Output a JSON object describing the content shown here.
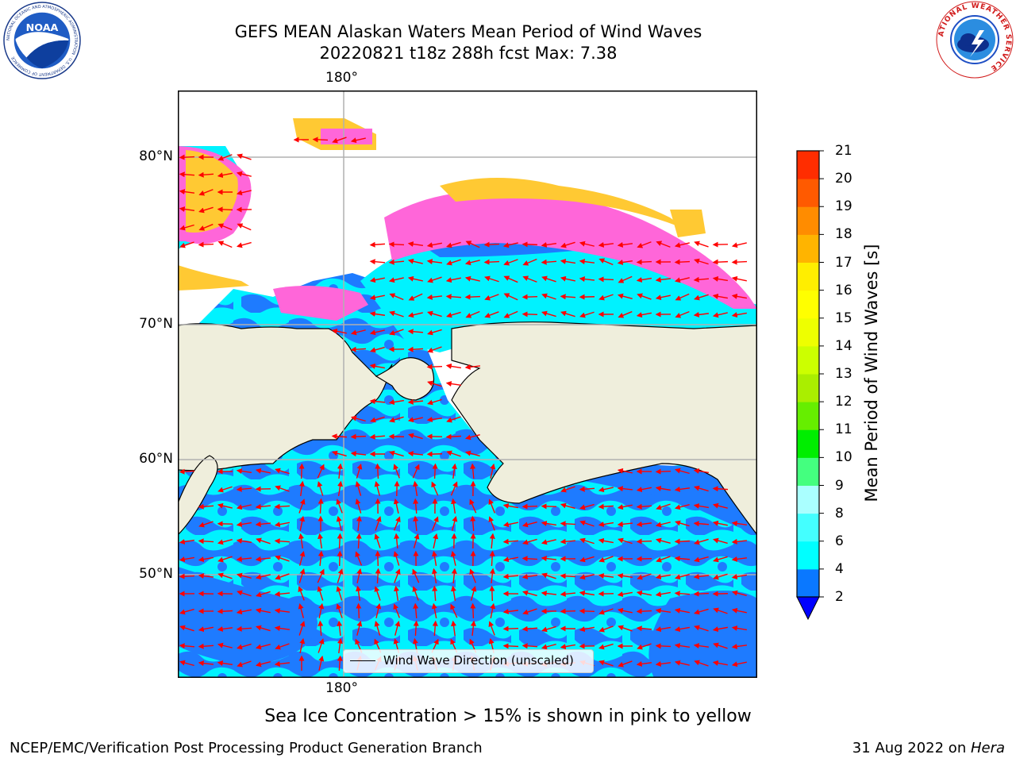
{
  "title": {
    "line1": "GEFS MEAN Alaskan Waters Mean Period of Wind Waves",
    "line2": "20220821 t18z 288h fcst   Max: 7.38"
  },
  "map": {
    "lon_label_top": "180°",
    "lon_label_bottom": "180°",
    "lat_labels": [
      "80°N",
      "70°N",
      "60°N",
      "50°N"
    ],
    "legend_label": "Wind Wave Direction (unscaled)",
    "colors": {
      "land": "#efeedc",
      "ice_free_sea_dark": "#1e7bff",
      "ice_free_sea_light": "#00ffff",
      "arrows": "#ff0000",
      "sea_ice_pink": "#ff66d9",
      "sea_ice_yellow": "#ffc933"
    }
  },
  "colorbar": {
    "label": "Mean Period of Wind Waves [s]",
    "ticks": [
      "2",
      "4",
      "6",
      "8",
      "9",
      "10",
      "11",
      "12",
      "13",
      "14",
      "15",
      "16",
      "17",
      "18",
      "19",
      "20",
      "21"
    ],
    "colors": [
      "#0a78ff",
      "#00ffff",
      "#44ffff",
      "#aaffff",
      "#44ff7f",
      "#00ee00",
      "#66ee00",
      "#aaee00",
      "#ccff00",
      "#eeff00",
      "#ffff00",
      "#ffee00",
      "#ffb400",
      "#ff8c00",
      "#ff5a00",
      "#ff2d00",
      "#ff0000"
    ],
    "under_color": "#0000ff"
  },
  "subtitle": "Sea Ice Concentration > 15% is shown in pink to yellow",
  "footer": {
    "left": "NCEP/EMC/Verification Post Processing Product Generation Branch",
    "right_date": "31 Aug 2022 on ",
    "right_machine": "Hera"
  },
  "logos": {
    "noaa_text": "NOAA",
    "noaa_ring_text": "NATIONAL OCEANIC AND ATMOSPHERIC ADMINISTRATION · U.S. DEPARTMENT OF COMMERCE",
    "nws_ring_text": "NATIONAL WEATHER SERVICE"
  }
}
